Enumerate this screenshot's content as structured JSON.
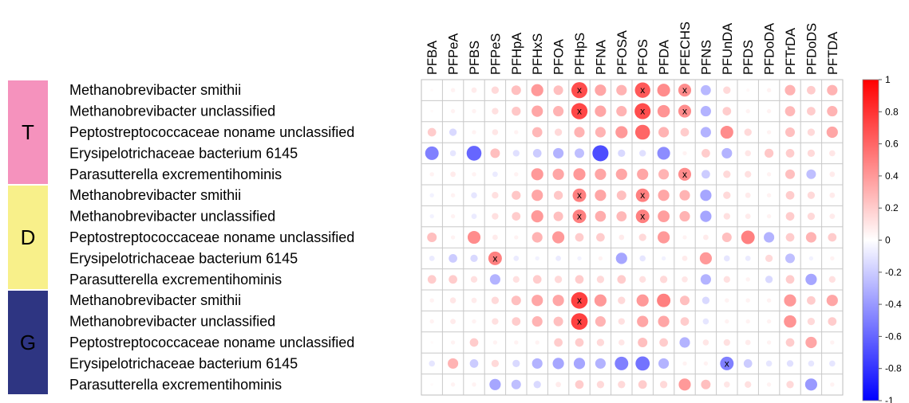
{
  "chart_data": {
    "type": "heatmap",
    "title": "",
    "columns": [
      "PFBA",
      "PFPeA",
      "PFBS",
      "PFPeS",
      "PFHpA",
      "PFHxS",
      "PFOA",
      "PFHpS",
      "PFNA",
      "PFOSA",
      "PFOS",
      "PFDA",
      "PFECHS",
      "PFNS",
      "PFUnDA",
      "PFDS",
      "PFDoDA",
      "PFTrDA",
      "PFDoDS",
      "PFTDA"
    ],
    "groups": [
      {
        "label": "T",
        "color": "#F592BD"
      },
      {
        "label": "D",
        "color": "#F8F08A"
      },
      {
        "label": "G",
        "color": "#2E3582"
      }
    ],
    "rows": [
      {
        "group": "T",
        "label": "Methanobrevibacter smithii",
        "values": [
          0.02,
          0.05,
          0.08,
          0.15,
          0.25,
          0.4,
          0.25,
          0.7,
          0.35,
          0.3,
          0.65,
          0.45,
          0.45,
          -0.28,
          0.15,
          0.03,
          0.05,
          0.3,
          0.2,
          0.3
        ],
        "marked": [
          7,
          10,
          12
        ]
      },
      {
        "group": "T",
        "label": "Methanobrevibacter unclassified",
        "values": [
          0.02,
          0.05,
          0.05,
          0.12,
          0.22,
          0.35,
          0.3,
          0.72,
          0.35,
          0.3,
          0.7,
          0.42,
          0.45,
          -0.3,
          0.2,
          0.05,
          0.05,
          0.28,
          0.2,
          0.3
        ],
        "marked": [
          7,
          10,
          12
        ]
      },
      {
        "group": "T",
        "label": "Peptostreptococcaceae noname unclassified",
        "values": [
          0.2,
          -0.15,
          0.05,
          0.1,
          0.05,
          0.28,
          0.15,
          0.3,
          0.3,
          0.4,
          0.6,
          0.3,
          0.2,
          -0.3,
          0.45,
          0.15,
          0.05,
          0.25,
          0.15,
          0.35
        ],
        "marked": []
      },
      {
        "group": "T",
        "label": "Erysipelotrichaceae bacterium 6145",
        "values": [
          -0.5,
          -0.1,
          -0.6,
          0.25,
          -0.12,
          -0.2,
          -0.3,
          -0.25,
          -0.7,
          -0.15,
          -0.12,
          -0.45,
          0.05,
          0.2,
          -0.3,
          0.1,
          0.22,
          0.2,
          0.15,
          0.1
        ],
        "marked": []
      },
      {
        "group": "T",
        "label": "Parasutterella excrementihominis",
        "values": [
          0.05,
          0.08,
          0.05,
          -0.08,
          0.05,
          0.4,
          0.35,
          0.4,
          0.35,
          0.35,
          0.35,
          0.3,
          0.45,
          -0.2,
          0.15,
          0.12,
          0.05,
          0.25,
          -0.25,
          0.08
        ],
        "marked": [
          12
        ]
      },
      {
        "group": "D",
        "label": "Methanobrevibacter smithii",
        "values": [
          -0.05,
          0.05,
          -0.1,
          0.12,
          0.22,
          0.35,
          0.22,
          0.5,
          0.35,
          0.25,
          0.5,
          0.35,
          0.3,
          -0.35,
          0.15,
          0.08,
          0.05,
          0.2,
          0.15,
          0.08
        ],
        "marked": [
          7,
          10
        ]
      },
      {
        "group": "D",
        "label": "Methanobrevibacter unclassified",
        "values": [
          -0.05,
          0.05,
          -0.08,
          0.12,
          0.2,
          0.4,
          0.25,
          0.5,
          0.32,
          0.28,
          0.5,
          0.38,
          0.3,
          -0.35,
          0.12,
          0.08,
          0.05,
          0.2,
          0.15,
          0.08
        ],
        "marked": [
          7,
          10
        ]
      },
      {
        "group": "D",
        "label": "Peptostreptococcaceae noname unclassified",
        "values": [
          0.25,
          0.05,
          0.45,
          0.08,
          0.05,
          0.3,
          0.4,
          0.2,
          0.2,
          0.08,
          0.15,
          0.4,
          0.05,
          0.08,
          0.25,
          0.5,
          -0.3,
          0.2,
          0.3,
          0.2
        ],
        "marked": []
      },
      {
        "group": "D",
        "label": "Erysipelotrichaceae bacterium 6145",
        "values": [
          -0.08,
          -0.2,
          -0.15,
          0.5,
          -0.08,
          -0.05,
          -0.08,
          -0.05,
          0.05,
          -0.35,
          -0.1,
          -0.05,
          0.08,
          0.4,
          -0.1,
          -0.08,
          0.15,
          -0.25,
          -0.05,
          0.05
        ],
        "marked": [
          3
        ]
      },
      {
        "group": "D",
        "label": "Parasutterella excrementihominis",
        "values": [
          0.2,
          0.2,
          0.12,
          -0.3,
          0.12,
          0.2,
          0.15,
          0.2,
          0.15,
          0.2,
          0.12,
          0.15,
          0.1,
          -0.3,
          0.12,
          0.05,
          -0.15,
          0.2,
          -0.35,
          0.12
        ],
        "marked": []
      },
      {
        "group": "G",
        "label": "Methanobrevibacter smithii",
        "values": [
          0.05,
          0.1,
          0.08,
          0.15,
          0.25,
          0.35,
          0.35,
          0.75,
          0.4,
          0.15,
          0.4,
          0.5,
          0.25,
          -0.15,
          0.05,
          0.05,
          0.05,
          0.4,
          0.2,
          0.35
        ],
        "marked": [
          7
        ]
      },
      {
        "group": "G",
        "label": "Methanobrevibacter unclassified",
        "values": [
          0.05,
          0.08,
          0.05,
          0.12,
          0.2,
          0.3,
          0.25,
          0.75,
          0.3,
          0.12,
          0.35,
          0.35,
          0.2,
          -0.1,
          0.05,
          0.05,
          0.05,
          0.42,
          0.15,
          0.2
        ],
        "marked": [
          7
        ]
      },
      {
        "group": "G",
        "label": "Peptostreptococcaceae noname unclassified",
        "values": [
          0.02,
          0.05,
          0.2,
          0.05,
          0.05,
          0.05,
          0.2,
          0.2,
          0.15,
          0.1,
          0.25,
          0.2,
          -0.3,
          0.1,
          0.12,
          0.08,
          0.05,
          0.2,
          0.35,
          0.05
        ],
        "marked": []
      },
      {
        "group": "G",
        "label": "Erysipelotrichaceae bacterium 6145",
        "values": [
          -0.1,
          0.3,
          -0.2,
          0.15,
          -0.15,
          -0.3,
          -0.35,
          -0.35,
          -0.3,
          -0.5,
          -0.55,
          -0.3,
          0.05,
          0.05,
          -0.5,
          -0.2,
          -0.1,
          -0.12,
          -0.1,
          -0.1
        ],
        "marked": [
          14
        ]
      },
      {
        "group": "G",
        "label": "Parasutterella excrementihominis",
        "values": [
          0.02,
          0.05,
          0.05,
          -0.35,
          -0.25,
          -0.15,
          0.08,
          0.2,
          0.15,
          0.15,
          0.2,
          0.15,
          0.4,
          0.25,
          0.1,
          0.12,
          0.05,
          0.15,
          -0.4,
          0.05
        ],
        "marked": []
      }
    ],
    "marker_text": "x",
    "colorbar": {
      "range": [
        -1,
        1
      ],
      "ticks": [
        "1",
        "0.8",
        "0.6",
        "0.4",
        "0.2",
        "0",
        "-0.2",
        "-0.4",
        "-0.6",
        "-0.8",
        "-1"
      ],
      "colors": [
        "#FF0000",
        "#FFFFFF",
        "#0000FF"
      ]
    },
    "legend": "right"
  }
}
